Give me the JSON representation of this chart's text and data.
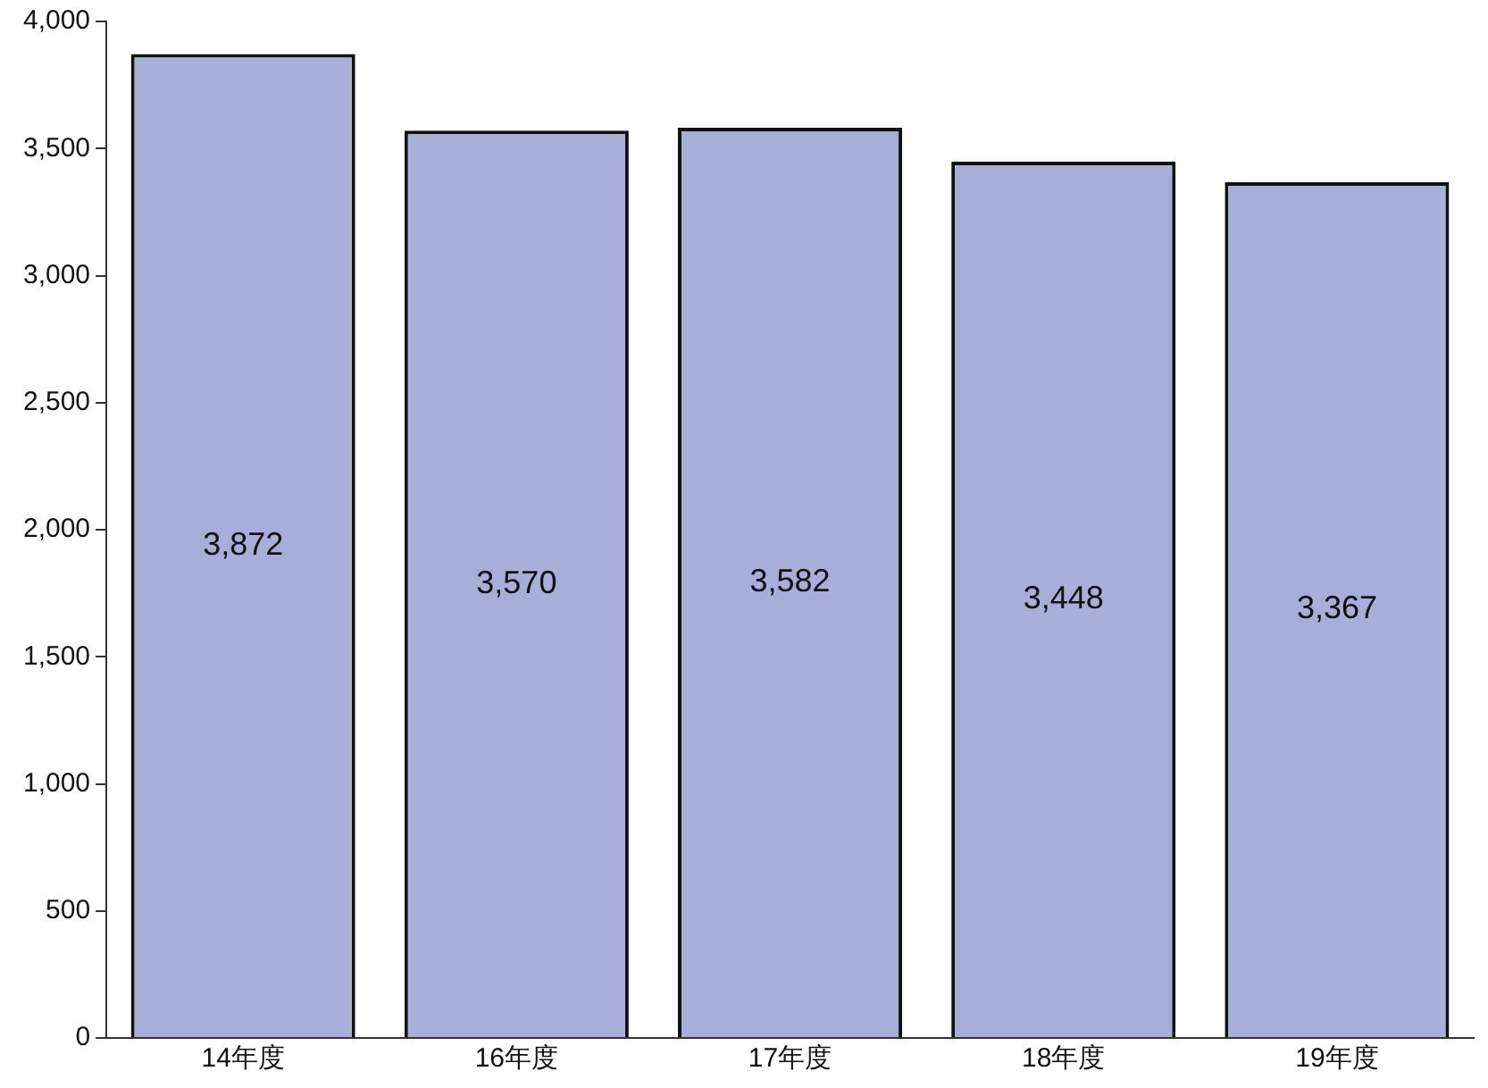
{
  "chart_data": {
    "type": "bar",
    "categories": [
      "14年度",
      "16年度",
      "17年度",
      "18年度",
      "19年度"
    ],
    "values": [
      3872,
      3570,
      3582,
      3448,
      3367
    ],
    "value_labels": [
      "3,872",
      "3,570",
      "3,582",
      "3,448",
      "3,367"
    ],
    "color": "#a7afd9",
    "ylim": [
      0,
      4000
    ],
    "yticks": [
      {
        "value": 0,
        "label": "0"
      },
      {
        "value": 500,
        "label": "500"
      },
      {
        "value": 1000,
        "label": "1,000"
      },
      {
        "value": 1500,
        "label": "1,500"
      },
      {
        "value": 2000,
        "label": "2,000"
      },
      {
        "value": 2500,
        "label": "2,500"
      },
      {
        "value": 3000,
        "label": "3,000"
      },
      {
        "value": 3500,
        "label": "3,500"
      },
      {
        "value": 4000,
        "label": "4,000"
      }
    ],
    "grid": false,
    "legend": false
  }
}
